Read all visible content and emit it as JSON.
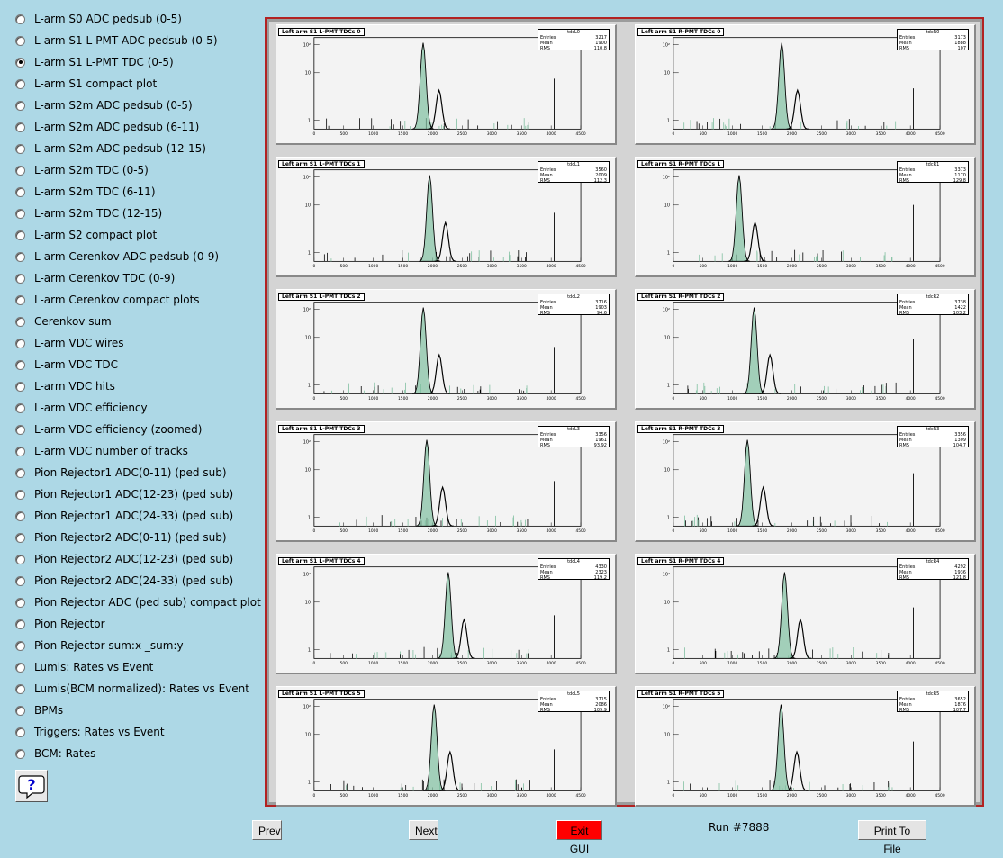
{
  "sidebar": {
    "items": [
      {
        "label": "L-arm S0 ADC pedsub (0-5)",
        "checked": false
      },
      {
        "label": "L-arm S1 L-PMT ADC pedsub (0-5)",
        "checked": false
      },
      {
        "label": "L-arm S1 L-PMT TDC (0-5)",
        "checked": true
      },
      {
        "label": "L-arm S1 compact plot",
        "checked": false
      },
      {
        "label": "L-arm S2m ADC pedsub (0-5)",
        "checked": false
      },
      {
        "label": "L-arm S2m ADC pedsub (6-11)",
        "checked": false
      },
      {
        "label": "L-arm S2m ADC pedsub (12-15)",
        "checked": false
      },
      {
        "label": "L-arm S2m TDC (0-5)",
        "checked": false
      },
      {
        "label": "L-arm S2m TDC (6-11)",
        "checked": false
      },
      {
        "label": "L-arm S2m TDC (12-15)",
        "checked": false
      },
      {
        "label": "L-arm S2 compact plot",
        "checked": false
      },
      {
        "label": "L-arm Cerenkov ADC pedsub (0-9)",
        "checked": false
      },
      {
        "label": "L-arm Cerenkov TDC (0-9)",
        "checked": false
      },
      {
        "label": "L-arm Cerenkov compact plots",
        "checked": false
      },
      {
        "label": "Cerenkov sum",
        "checked": false
      },
      {
        "label": "L-arm VDC wires",
        "checked": false
      },
      {
        "label": "L-arm VDC TDC",
        "checked": false
      },
      {
        "label": "L-arm VDC hits",
        "checked": false
      },
      {
        "label": "L-arm VDC efficiency",
        "checked": false
      },
      {
        "label": "L-arm VDC efficiency (zoomed)",
        "checked": false
      },
      {
        "label": "L-arm VDC number of tracks",
        "checked": false
      },
      {
        "label": "Pion Rejector1 ADC(0-11) (ped sub)",
        "checked": false
      },
      {
        "label": "Pion Rejector1 ADC(12-23) (ped sub)",
        "checked": false
      },
      {
        "label": "Pion Rejector1 ADC(24-33) (ped sub)",
        "checked": false
      },
      {
        "label": "Pion Rejector2 ADC(0-11) (ped sub)",
        "checked": false
      },
      {
        "label": "Pion Rejector2 ADC(12-23) (ped sub)",
        "checked": false
      },
      {
        "label": "Pion Rejector2 ADC(24-33) (ped sub)",
        "checked": false
      },
      {
        "label": "Pion Rejector ADC (ped sub) compact plot",
        "checked": false
      },
      {
        "label": "Pion Rejector",
        "checked": false
      },
      {
        "label": "Pion Rejector sum:x _sum:y",
        "checked": false
      },
      {
        "label": "Lumis: Rates vs Event",
        "checked": false
      },
      {
        "label": "Lumis(BCM normalized): Rates vs Event",
        "checked": false
      },
      {
        "label": "BPMs",
        "checked": false
      },
      {
        "label": "Triggers: Rates vs Event",
        "checked": false
      },
      {
        "label": "BCM: Rates",
        "checked": false
      }
    ],
    "help_icon": "question-mark-icon"
  },
  "canvas": {
    "pads": [
      {
        "title": "Left arm S1 L-PMT TDCs 0",
        "stats_label": "tdcL0",
        "entries": "3217",
        "mean": "1900",
        "rms": "110.8"
      },
      {
        "title": "Left arm S1 R-PMT TDCs 0",
        "stats_label": "tdcR0",
        "entries": "3173",
        "mean": "1888",
        "rms": "107"
      },
      {
        "title": "Left arm S1 L-PMT TDCs 1",
        "stats_label": "tdcL1",
        "entries": "3560",
        "mean": "2009",
        "rms": "112.3"
      },
      {
        "title": "Left arm S1 R-PMT TDCs 1",
        "stats_label": "tdcR1",
        "entries": "3373",
        "mean": "1170",
        "rms": "129.8"
      },
      {
        "title": "Left arm S1 L-PMT TDCs 2",
        "stats_label": "tdcL2",
        "entries": "3716",
        "mean": "1903",
        "rms": "94.6"
      },
      {
        "title": "Left arm S1 R-PMT TDCs 2",
        "stats_label": "tdcR2",
        "entries": "3738",
        "mean": "1422",
        "rms": "103.2"
      },
      {
        "title": "Left arm S1 L-PMT TDCs 3",
        "stats_label": "tdcL3",
        "entries": "3356",
        "mean": "1961",
        "rms": "93.92"
      },
      {
        "title": "Left arm S1 R-PMT TDCs 3",
        "stats_label": "tdcR3",
        "entries": "3356",
        "mean": "1309",
        "rms": "104.7"
      },
      {
        "title": "Left arm S1 L-PMT TDCs 4",
        "stats_label": "tdcL4",
        "entries": "4330",
        "mean": "2323",
        "rms": "119.2"
      },
      {
        "title": "Left arm S1 R-PMT TDCs 4",
        "stats_label": "tdcR4",
        "entries": "4292",
        "mean": "1936",
        "rms": "121.8"
      },
      {
        "title": "Left arm S1 L-PMT TDCs 5",
        "stats_label": "tdcL5",
        "entries": "3715",
        "mean": "2086",
        "rms": "109.9"
      },
      {
        "title": "Left arm S1 R-PMT TDCs 5",
        "stats_label": "tdcR5",
        "entries": "3652",
        "mean": "1876",
        "rms": "107.7"
      }
    ],
    "x_ticks": [
      "0",
      "500",
      "1000",
      "1500",
      "2000",
      "2500",
      "3000",
      "3500",
      "4000",
      "4500"
    ],
    "y_ticks": [
      "10²",
      "10",
      "1"
    ],
    "stats_keys": {
      "entries": "Entries",
      "mean": "Mean",
      "rms": "RMS"
    },
    "colors": {
      "fill": "#7fbf9f",
      "line": "#000000",
      "frame": "#b22222"
    }
  },
  "buttons": {
    "prev": "Prev",
    "next": "Next",
    "exit": "Exit GUI",
    "print": "Print To File"
  },
  "run_label": "Run #7888"
}
